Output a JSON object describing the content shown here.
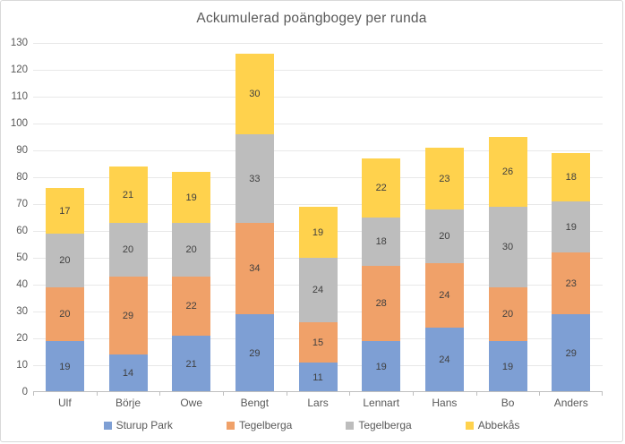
{
  "title": "Ackumulerad poängbogey per runda",
  "chart_data": {
    "type": "bar",
    "stacked": true,
    "title": "Ackumulerad poängbogey per runda",
    "categories": [
      "Ulf",
      "Börje",
      "Owe",
      "Bengt",
      "Lars",
      "Lennart",
      "Hans",
      "Bo",
      "Anders"
    ],
    "series": [
      {
        "name": "Sturup Park",
        "color": "#7E9FD4",
        "values": [
          19,
          14,
          21,
          29,
          11,
          19,
          24,
          19,
          29
        ]
      },
      {
        "name": "Tegelberga",
        "color": "#F0A169",
        "values": [
          20,
          29,
          22,
          34,
          15,
          28,
          24,
          20,
          23
        ]
      },
      {
        "name": "Tegelberga",
        "color": "#BDBDBD",
        "values": [
          20,
          20,
          20,
          33,
          24,
          18,
          20,
          30,
          19
        ]
      },
      {
        "name": "Abbekås",
        "color": "#FFD24D",
        "values": [
          17,
          21,
          19,
          30,
          19,
          22,
          23,
          26,
          18
        ]
      }
    ],
    "ylim": [
      0,
      130
    ],
    "yticks": [
      0,
      10,
      20,
      30,
      40,
      50,
      60,
      70,
      80,
      90,
      100,
      110,
      120,
      130
    ],
    "grid": true,
    "legend_position": "bottom",
    "data_labels": true,
    "colors": {
      "grid": "#E8E8E8",
      "axis": "#BFBFBF",
      "axis_text": "#595959",
      "data_label_text": "#404040",
      "title_text": "#595959",
      "frame_border": "#D9D9D9",
      "background": "#FFFFFF"
    }
  }
}
